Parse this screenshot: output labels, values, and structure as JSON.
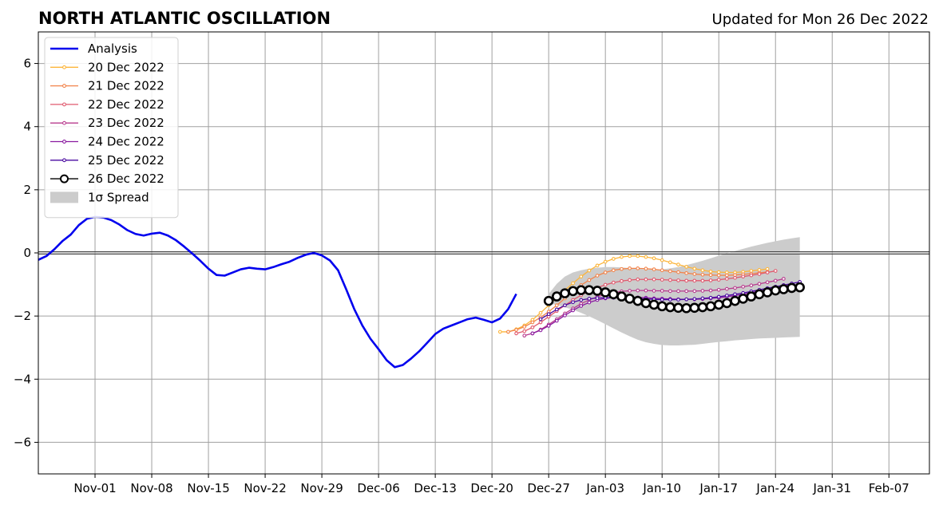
{
  "title": "NORTH ATLANTIC OSCILLATION",
  "subtitle": "Updated for Mon 26 Dec 2022",
  "chart_data": {
    "type": "line",
    "title": "NORTH ATLANTIC OSCILLATION",
    "subtitle": "Updated for Mon 26 Dec 2022",
    "xlabel": "",
    "ylabel": "",
    "x_range": [
      "2022-10-25",
      "2023-02-12"
    ],
    "ylim": [
      -7,
      7
    ],
    "grid": true,
    "legend_position": "top-left",
    "x_ticks": [
      "Nov-01",
      "Nov-08",
      "Nov-15",
      "Nov-22",
      "Nov-29",
      "Dec-06",
      "Dec-13",
      "Dec-20",
      "Dec-27",
      "Jan-03",
      "Jan-10",
      "Jan-17",
      "Jan-24",
      "Jan-31",
      "Feb-07"
    ],
    "x_tick_dates": [
      "2022-11-01",
      "2022-11-08",
      "2022-11-15",
      "2022-11-22",
      "2022-11-29",
      "2022-12-06",
      "2022-12-13",
      "2022-12-20",
      "2022-12-27",
      "2023-01-03",
      "2023-01-10",
      "2023-01-17",
      "2023-01-24",
      "2023-01-31",
      "2023-02-07"
    ],
    "y_ticks": [
      -6,
      -4,
      -2,
      0,
      2,
      4,
      6
    ],
    "y_tick_labels": [
      "−6",
      "−4",
      "−2",
      "0",
      "2",
      "4",
      "6"
    ],
    "analysis": {
      "name": "Analysis",
      "color": "#0000ee",
      "start_date": "2022-10-25",
      "values": [
        -0.22,
        -0.1,
        0.12,
        0.38,
        0.58,
        0.88,
        1.08,
        1.14,
        1.12,
        1.04,
        0.9,
        0.72,
        0.6,
        0.55,
        0.61,
        0.64,
        0.55,
        0.4,
        0.2,
        -0.02,
        -0.25,
        -0.5,
        -0.7,
        -0.72,
        -0.62,
        -0.52,
        -0.47,
        -0.5,
        -0.52,
        -0.45,
        -0.36,
        -0.28,
        -0.16,
        -0.06,
        0.0,
        -0.08,
        -0.24,
        -0.55,
        -1.15,
        -1.78,
        -2.3,
        -2.72,
        -3.05,
        -3.4,
        -3.62,
        -3.55,
        -3.35,
        -3.12,
        -2.85,
        -2.57,
        -2.4,
        -2.3,
        -2.2,
        -2.1,
        -2.05,
        -2.12,
        -2.2,
        -2.08,
        -1.78,
        -1.3
      ]
    },
    "forecasts": [
      {
        "name": "20 Dec 2022",
        "color": "#fcb53a",
        "start_date": "2022-12-21",
        "values": [
          -2.5,
          -2.5,
          -2.42,
          -2.3,
          -2.12,
          -1.9,
          -1.66,
          -1.42,
          -1.18,
          -0.96,
          -0.75,
          -0.56,
          -0.4,
          -0.28,
          -0.19,
          -0.13,
          -0.1,
          -0.1,
          -0.13,
          -0.17,
          -0.23,
          -0.3,
          -0.37,
          -0.44,
          -0.5,
          -0.55,
          -0.59,
          -0.61,
          -0.62,
          -0.62,
          -0.6,
          -0.57,
          -0.54,
          -0.51
        ]
      },
      {
        "name": "21 Dec 2022",
        "color": "#f2844b",
        "start_date": "2022-12-22",
        "values": [
          -2.5,
          -2.44,
          -2.34,
          -2.2,
          -2.04,
          -1.86,
          -1.66,
          -1.44,
          -1.22,
          -1.02,
          -0.86,
          -0.72,
          -0.62,
          -0.55,
          -0.51,
          -0.49,
          -0.49,
          -0.5,
          -0.52,
          -0.55,
          -0.58,
          -0.61,
          -0.64,
          -0.67,
          -0.69,
          -0.7,
          -0.71,
          -0.71,
          -0.7,
          -0.68,
          -0.66,
          -0.63,
          -0.6
        ]
      },
      {
        "name": "22 Dec 2022",
        "color": "#e05a6e",
        "start_date": "2022-12-23",
        "values": [
          -2.55,
          -2.48,
          -2.36,
          -2.2,
          -2.02,
          -1.84,
          -1.66,
          -1.49,
          -1.34,
          -1.21,
          -1.1,
          -1.01,
          -0.94,
          -0.89,
          -0.86,
          -0.84,
          -0.84,
          -0.84,
          -0.85,
          -0.86,
          -0.87,
          -0.88,
          -0.88,
          -0.88,
          -0.87,
          -0.85,
          -0.82,
          -0.79,
          -0.75,
          -0.71,
          -0.67,
          -0.62,
          -0.57
        ]
      },
      {
        "name": "23 Dec 2022",
        "color": "#b83b8e",
        "start_date": "2022-12-24",
        "values": [
          -2.62,
          -2.55,
          -2.43,
          -2.27,
          -2.1,
          -1.92,
          -1.76,
          -1.61,
          -1.49,
          -1.39,
          -1.31,
          -1.26,
          -1.22,
          -1.2,
          -1.19,
          -1.19,
          -1.2,
          -1.2,
          -1.21,
          -1.21,
          -1.21,
          -1.21,
          -1.2,
          -1.19,
          -1.17,
          -1.14,
          -1.11,
          -1.07,
          -1.03,
          -0.98,
          -0.93,
          -0.88,
          -0.82
        ]
      },
      {
        "name": "24 Dec 2022",
        "color": "#8a1aa0",
        "start_date": "2022-12-25",
        "values": [
          -2.55,
          -2.45,
          -2.31,
          -2.15,
          -1.98,
          -1.82,
          -1.68,
          -1.57,
          -1.49,
          -1.44,
          -1.41,
          -1.4,
          -1.4,
          -1.41,
          -1.42,
          -1.44,
          -1.45,
          -1.46,
          -1.47,
          -1.47,
          -1.47,
          -1.46,
          -1.44,
          -1.42,
          -1.39,
          -1.35,
          -1.31,
          -1.26,
          -1.21,
          -1.16,
          -1.11,
          -1.06,
          -1.01
        ]
      },
      {
        "name": "25 Dec 2022",
        "color": "#4a0aa0",
        "start_date": "2022-12-26",
        "values": [
          -2.1,
          -1.94,
          -1.79,
          -1.66,
          -1.56,
          -1.49,
          -1.45,
          -1.43,
          -1.42,
          -1.42,
          -1.43,
          -1.44,
          -1.45,
          -1.46,
          -1.47,
          -1.48,
          -1.48,
          -1.48,
          -1.47,
          -1.46,
          -1.44,
          -1.42,
          -1.39,
          -1.35,
          -1.31,
          -1.27,
          -1.22,
          -1.17,
          -1.12,
          -1.07,
          -1.02,
          -0.97,
          -0.92
        ]
      },
      {
        "name": "26 Dec 2022",
        "color": "#000000",
        "start_date": "2022-12-27",
        "values": [
          -1.52,
          -1.38,
          -1.28,
          -1.21,
          -1.18,
          -1.18,
          -1.2,
          -1.25,
          -1.31,
          -1.38,
          -1.45,
          -1.52,
          -1.59,
          -1.64,
          -1.69,
          -1.72,
          -1.74,
          -1.75,
          -1.74,
          -1.72,
          -1.69,
          -1.64,
          -1.59,
          -1.52,
          -1.45,
          -1.38,
          -1.31,
          -1.25,
          -1.19,
          -1.15,
          -1.11,
          -1.09
        ]
      }
    ],
    "spread": {
      "name": "1σ Spread",
      "color": "#cccccc",
      "start_date": "2022-12-27",
      "upper": [
        -1.3,
        -0.98,
        -0.75,
        -0.62,
        -0.55,
        -0.5,
        -0.47,
        -0.45,
        -0.45,
        -0.46,
        -0.48,
        -0.5,
        -0.52,
        -0.53,
        -0.52,
        -0.49,
        -0.45,
        -0.39,
        -0.32,
        -0.25,
        -0.17,
        -0.09,
        -0.01,
        0.06,
        0.13,
        0.2,
        0.26,
        0.32,
        0.37,
        0.42,
        0.46,
        0.5
      ],
      "lower": [
        -1.6,
        -1.65,
        -1.72,
        -1.8,
        -1.9,
        -2.01,
        -2.13,
        -2.26,
        -2.39,
        -2.52,
        -2.64,
        -2.75,
        -2.83,
        -2.88,
        -2.92,
        -2.93,
        -2.93,
        -2.92,
        -2.91,
        -2.88,
        -2.85,
        -2.82,
        -2.8,
        -2.77,
        -2.75,
        -2.73,
        -2.71,
        -2.7,
        -2.69,
        -2.68,
        -2.67,
        -2.66
      ]
    }
  }
}
